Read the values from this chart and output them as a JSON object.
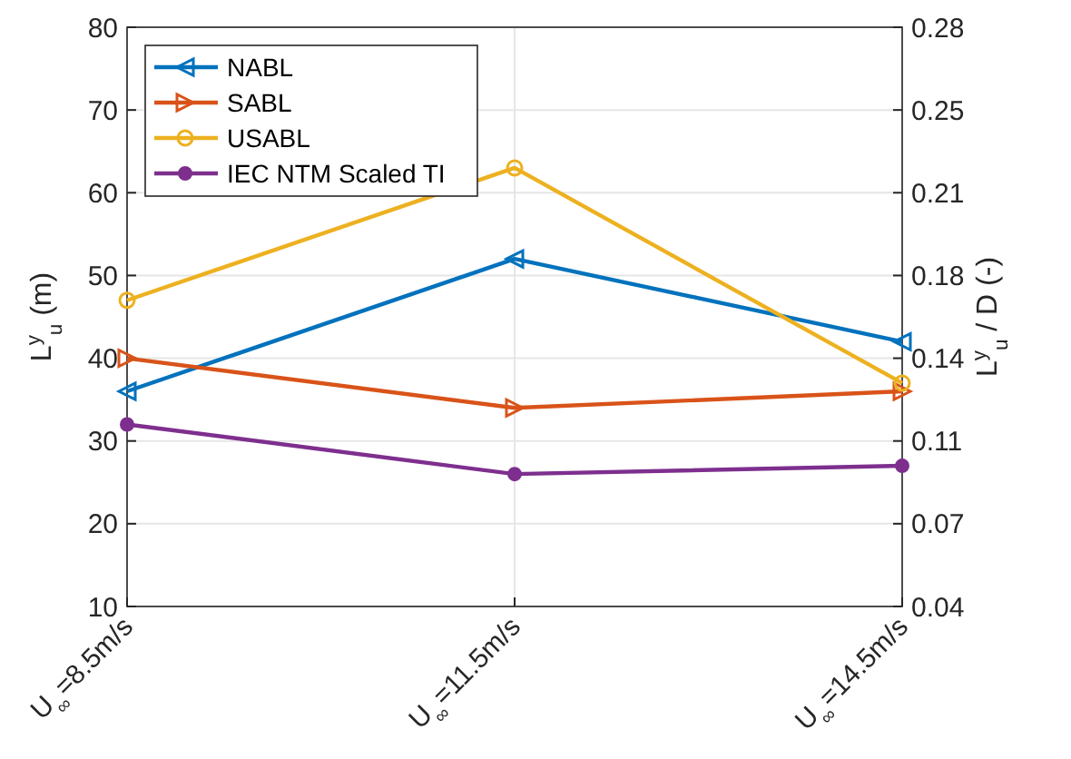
{
  "chart_data": {
    "type": "line",
    "categories": [
      "U$_{∞}$=8.5m/s",
      "U$_{∞}$=11.5m/s",
      "U$_{∞}$=14.5m/s"
    ],
    "series": [
      {
        "name": "NABL",
        "color": "#0072bd",
        "marker": "triangle-left",
        "values": [
          36,
          52,
          42
        ]
      },
      {
        "name": "SABL",
        "color": "#d95319",
        "marker": "triangle-right",
        "values": [
          40,
          34,
          36
        ]
      },
      {
        "name": "USABL",
        "color": "#edb120",
        "marker": "circle-open",
        "values": [
          47,
          63,
          37
        ]
      },
      {
        "name": "IEC NTM Scaled TI",
        "color": "#7e2f8e",
        "marker": "circle",
        "values": [
          32,
          26,
          27
        ]
      }
    ],
    "ylabel": "L$^{y}$$_{u}$ (m)",
    "y2label": "L$^{y}$$_{u}$ / D (-)",
    "ylim": [
      10,
      80
    ],
    "yticks": [
      10,
      20,
      30,
      40,
      50,
      60,
      70,
      80
    ],
    "y2lim": [
      0.035,
      0.28
    ],
    "y2ticks": [
      {
        "value": 0.035,
        "label": "0.04"
      },
      0.07,
      {
        "value": 0.105,
        "label": "0.11"
      },
      0.14,
      {
        "value": 0.175,
        "label": "0.18"
      },
      0.21,
      {
        "value": 0.245,
        "label": "0.25"
      },
      0.28
    ],
    "grid": true,
    "legend": "top left"
  }
}
